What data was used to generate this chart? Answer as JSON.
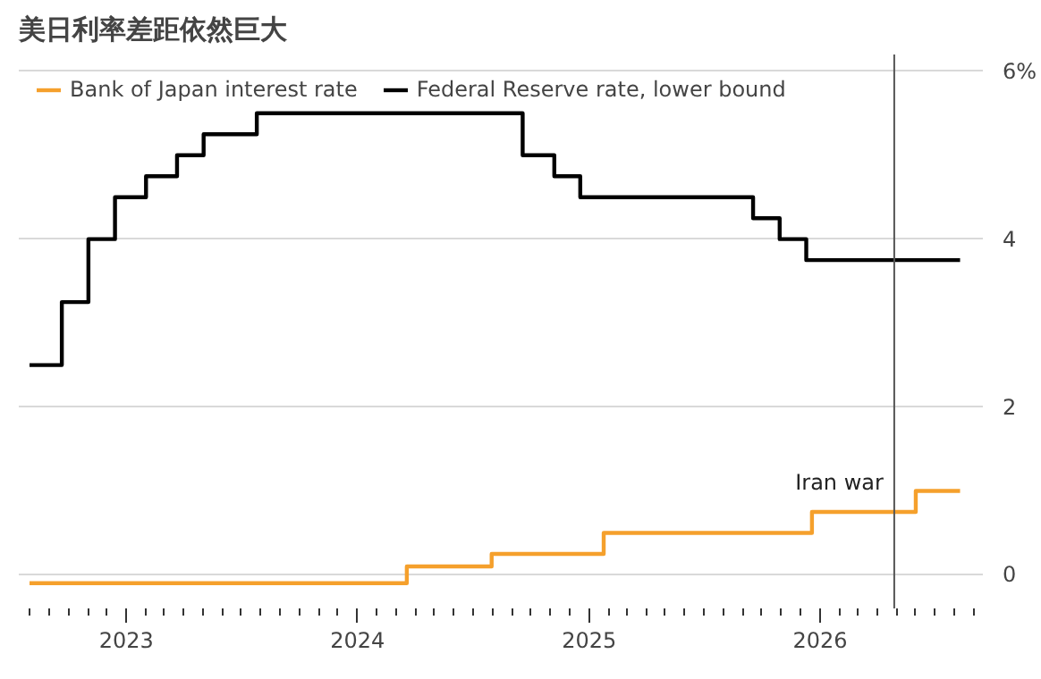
{
  "chart_data": {
    "type": "step",
    "title": "美日利率差距依然巨大",
    "series": [
      {
        "name": "Bank of Japan interest rate",
        "color": "#f5a02c",
        "x": [
          "2022-08-01",
          "2024-03-19",
          "2024-07-31",
          "2025-01-24",
          "2025-12-19",
          "2026-06-01",
          "2026-08-10"
        ],
        "values": [
          -0.1,
          0.1,
          0.25,
          0.5,
          0.75,
          1.0,
          1.0
        ]
      },
      {
        "name": "Federal Reserve rate, lower bound",
        "color": "#000000",
        "x": [
          "2022-08-01",
          "2022-09-21",
          "2022-11-02",
          "2022-12-14",
          "2023-02-01",
          "2023-03-22",
          "2023-05-03",
          "2023-07-26",
          "2024-09-18",
          "2024-11-07",
          "2024-12-18",
          "2025-09-17",
          "2025-10-29",
          "2025-12-10",
          "2026-08-10"
        ],
        "values": [
          2.5,
          3.25,
          4.0,
          4.5,
          4.75,
          5.0,
          5.25,
          5.5,
          5.0,
          4.75,
          4.5,
          4.25,
          4.0,
          3.75,
          3.75
        ]
      }
    ],
    "xlim": [
      "2022-07-15",
      "2026-09-15"
    ],
    "xticks": [
      {
        "value": "2023-01-01",
        "label": "2023"
      },
      {
        "value": "2024-01-01",
        "label": "2024"
      },
      {
        "value": "2025-01-01",
        "label": "2025"
      },
      {
        "value": "2026-01-01",
        "label": "2026"
      }
    ],
    "ylim": [
      -0.4,
      6.2
    ],
    "yticks": [
      0,
      2,
      4,
      {
        "value": 6,
        "label": "6%"
      }
    ],
    "grid": "y",
    "legend": "top left",
    "ref_lines": [
      {
        "axis": "x",
        "value": "2026-04-28",
        "label": "Iran war",
        "color": "#555555"
      }
    ]
  }
}
